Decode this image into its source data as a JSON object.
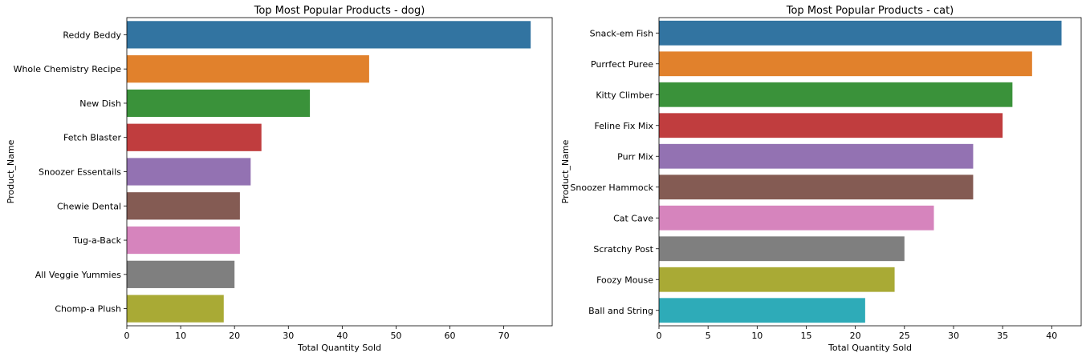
{
  "chart_data": [
    {
      "type": "bar",
      "orientation": "horizontal",
      "title": "Top Most Popular Products - dog)",
      "xlabel": "Total Quantity Sold",
      "ylabel": "Product_Name",
      "categories": [
        "Reddy Beddy",
        "Whole Chemistry Recipe",
        "New Dish",
        "Fetch Blaster",
        "Snoozer Essentails",
        "Chewie Dental",
        "Tug-a-Back",
        "All Veggie Yummies",
        "Chomp-a Plush"
      ],
      "values": [
        75,
        45,
        34,
        25,
        23,
        21,
        21,
        20,
        18
      ],
      "colors": [
        "#3274a1",
        "#e1812c",
        "#3a923a",
        "#c03d3e",
        "#9372b2",
        "#845b53",
        "#d684bd",
        "#7f7f7f",
        "#a9aa35"
      ],
      "xlim": [
        0,
        79
      ],
      "xticks": [
        0,
        10,
        20,
        30,
        40,
        50,
        60,
        70
      ],
      "grid": false
    },
    {
      "type": "bar",
      "orientation": "horizontal",
      "title": "Top Most Popular Products - cat)",
      "xlabel": "Total Quantity Sold",
      "ylabel": "Product_Name",
      "categories": [
        "Snack-em Fish",
        "Purrfect Puree",
        "Kitty Climber",
        "Feline Fix Mix",
        "Purr Mix",
        "Snoozer Hammock",
        "Cat Cave",
        "Scratchy Post",
        "Foozy Mouse",
        "Ball and String"
      ],
      "values": [
        41,
        38,
        36,
        35,
        32,
        32,
        28,
        25,
        24,
        21
      ],
      "colors": [
        "#3274a1",
        "#e1812c",
        "#3a923a",
        "#c03d3e",
        "#9372b2",
        "#845b53",
        "#d684bd",
        "#7f7f7f",
        "#a9aa35",
        "#2eabb8"
      ],
      "xlim": [
        0,
        43
      ],
      "xticks": [
        0,
        5,
        10,
        15,
        20,
        25,
        30,
        35,
        40
      ],
      "grid": false
    }
  ]
}
